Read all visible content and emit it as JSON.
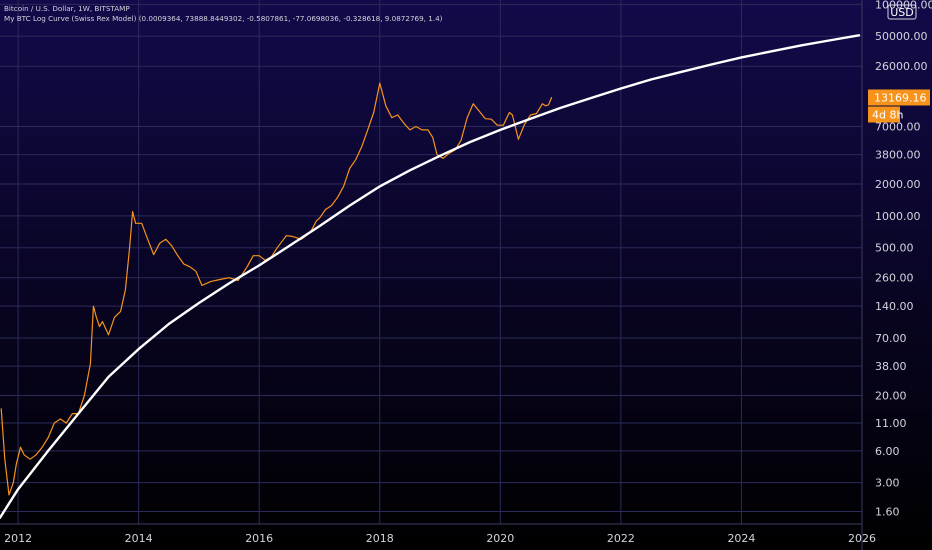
{
  "header": {
    "title": "Bitcoin / U.S. Dollar, 1W, BITSTAMP",
    "indicator": "My BTC Log Curve (Swiss Rex Model) (0.0009364, 73888.8449302, -0.5807861, -77.0698036, -0.328618, 9.0872769, 1.4)"
  },
  "colors": {
    "background_top": "#120a4a",
    "background_bottom": "#000000",
    "price_line": "#f7931a",
    "curve_line": "#ffffff",
    "price_tag": "#f7931a",
    "axis_text": "#d1d4dc",
    "grid": "#2a2b5a"
  },
  "chart_data": {
    "type": "line",
    "y_scale": "log",
    "currency": "USD",
    "xlim": [
      2011.7,
      2026.0
    ],
    "ylim": [
      1.22,
      110000
    ],
    "grid": true,
    "x_ticks": [
      "2012",
      "2014",
      "2016",
      "2018",
      "2020",
      "2022",
      "2024",
      "2026"
    ],
    "x_tick_values": [
      2012,
      2014,
      2016,
      2018,
      2020,
      2022,
      2024,
      2026
    ],
    "y_ticks": [
      "100000.00",
      "50000.00",
      "26000.00",
      "13169.16",
      "7000.00",
      "3800.00",
      "2000.00",
      "1000.00",
      "500.00",
      "260.00",
      "140.00",
      "70.00",
      "38.00",
      "20.00",
      "11.00",
      "6.00",
      "3.00",
      "1.60"
    ],
    "y_tick_values": [
      100000,
      50000,
      26000,
      13169.16,
      7000,
      3800,
      2000,
      1000,
      500,
      260,
      140,
      70,
      38,
      20,
      11,
      6,
      3,
      1.6
    ],
    "last_price": {
      "label": "13169.16",
      "value": 13169.16,
      "countdown": "4d 8h"
    },
    "series": [
      {
        "kind": "price",
        "x": [
          2011.72,
          2011.78,
          2011.85,
          2011.92,
          2011.97,
          2012.04,
          2012.1,
          2012.2,
          2012.3,
          2012.4,
          2012.5,
          2012.6,
          2012.7,
          2012.8,
          2012.9,
          2013.0,
          2013.1,
          2013.2,
          2013.25,
          2013.3,
          2013.35,
          2013.4,
          2013.5,
          2013.6,
          2013.7,
          2013.78,
          2013.85,
          2013.9,
          2013.95,
          2014.05,
          2014.15,
          2014.25,
          2014.35,
          2014.45,
          2014.55,
          2014.65,
          2014.75,
          2014.85,
          2014.95,
          2015.05,
          2015.2,
          2015.35,
          2015.5,
          2015.65,
          2015.8,
          2015.9,
          2016.0,
          2016.1,
          2016.2,
          2016.3,
          2016.45,
          2016.55,
          2016.7,
          2016.85,
          2016.95,
          2017.0,
          2017.1,
          2017.2,
          2017.3,
          2017.4,
          2017.5,
          2017.6,
          2017.7,
          2017.8,
          2017.9,
          2017.96,
          2018.0,
          2018.1,
          2018.2,
          2018.3,
          2018.4,
          2018.5,
          2018.6,
          2018.7,
          2018.8,
          2018.88,
          2018.95,
          2019.05,
          2019.15,
          2019.25,
          2019.35,
          2019.45,
          2019.55,
          2019.65,
          2019.75,
          2019.85,
          2019.95,
          2020.05,
          2020.15,
          2020.2,
          2020.3,
          2020.4,
          2020.5,
          2020.6,
          2020.7,
          2020.75,
          2020.8,
          2020.85
        ],
        "y": [
          15,
          5,
          2.3,
          3,
          4.5,
          6.5,
          5.5,
          5,
          5.5,
          6.5,
          8,
          11,
          12,
          11,
          13.5,
          13.5,
          20,
          40,
          140,
          110,
          90,
          100,
          75,
          110,
          125,
          200,
          500,
          1100,
          850,
          850,
          600,
          430,
          550,
          600,
          520,
          420,
          350,
          330,
          300,
          220,
          240,
          250,
          260,
          245,
          330,
          420,
          420,
          380,
          410,
          500,
          650,
          640,
          600,
          700,
          900,
          950,
          1150,
          1250,
          1500,
          1900,
          2800,
          3400,
          4500,
          6500,
          9500,
          14000,
          18000,
          11000,
          8500,
          9000,
          7500,
          6500,
          7000,
          6500,
          6500,
          5500,
          3800,
          3500,
          3900,
          4200,
          5200,
          8500,
          11500,
          9800,
          8300,
          8200,
          7200,
          7200,
          9500,
          9000,
          5300,
          7300,
          9000,
          9300,
          11500,
          11000,
          11200,
          13169
        ]
      },
      {
        "kind": "model",
        "x": [
          2011.7,
          2012.0,
          2012.5,
          2013.0,
          2013.5,
          2014.0,
          2014.5,
          2015.0,
          2015.5,
          2016.0,
          2016.5,
          2017.0,
          2017.5,
          2018.0,
          2018.5,
          2019.0,
          2019.5,
          2020.0,
          2020.5,
          2021.0,
          2021.5,
          2022.0,
          2022.5,
          2023.0,
          2023.5,
          2024.0,
          2024.5,
          2025.0,
          2025.5,
          2025.95
        ],
        "y": [
          1.4,
          2.6,
          6.0,
          13.5,
          30,
          55,
          95,
          150,
          230,
          340,
          520,
          800,
          1250,
          1900,
          2700,
          3700,
          5000,
          6500,
          8300,
          10500,
          13000,
          16000,
          19500,
          23000,
          27000,
          31500,
          36000,
          41000,
          46000,
          51000
        ]
      }
    ]
  }
}
